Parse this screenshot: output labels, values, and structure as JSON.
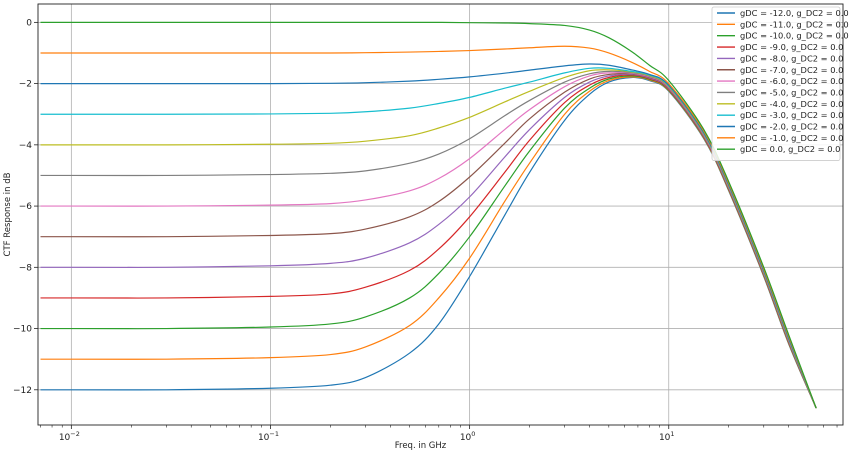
{
  "chart_data": {
    "type": "line",
    "title": "",
    "xlabel": "Freq. in GHz",
    "ylabel": "CTF Response in dB",
    "x_scale": "log",
    "xlim": [
      0.0068,
      75
    ],
    "ylim": [
      -13.15,
      0.6
    ],
    "grid": true,
    "legend_position": "top-right",
    "x_ticks": [
      {
        "value": 0.01,
        "base": "10",
        "exp": "−2"
      },
      {
        "value": 0.1,
        "base": "10",
        "exp": "−1"
      },
      {
        "value": 1,
        "base": "10",
        "exp": "0"
      },
      {
        "value": 10,
        "base": "10",
        "exp": "1"
      }
    ],
    "y_ticks": [
      {
        "value": 0,
        "label": "0"
      },
      {
        "value": -2,
        "label": "−2"
      },
      {
        "value": -4,
        "label": "−4"
      },
      {
        "value": -6,
        "label": "−6"
      },
      {
        "value": -8,
        "label": "−8"
      },
      {
        "value": -10,
        "label": "−10"
      },
      {
        "value": -12,
        "label": "−12"
      }
    ],
    "x": [
      0.007,
      0.01,
      0.03,
      0.1,
      0.2,
      0.3,
      0.5,
      0.7,
      1.0,
      1.5,
      2.0,
      3.0,
      4.0,
      5.0,
      6.5,
      8.0,
      10.0,
      15.0,
      20.0,
      30.0,
      40.0,
      55.0
    ],
    "series": [
      {
        "name": "gDC = -12.0, g_DC2 = 0.0",
        "color": "#1f77b4",
        "values": [
          -12.0,
          -12.0,
          -12.0,
          -11.95,
          -11.85,
          -11.6,
          -10.8,
          -9.85,
          -8.3,
          -6.3,
          -4.9,
          -3.2,
          -2.35,
          -1.95,
          -1.8,
          -1.9,
          -2.25,
          -3.8,
          -5.5,
          -8.3,
          -10.5,
          -12.6
        ]
      },
      {
        "name": "gDC = -11.0, g_DC2 = 0.0",
        "color": "#ff7f0e",
        "values": [
          -11.0,
          -11.0,
          -11.0,
          -10.95,
          -10.85,
          -10.6,
          -9.9,
          -9.0,
          -7.7,
          -5.85,
          -4.6,
          -3.0,
          -2.25,
          -1.9,
          -1.78,
          -1.88,
          -2.23,
          -3.78,
          -5.48,
          -8.28,
          -10.48,
          -12.6
        ]
      },
      {
        "name": "gDC = -10.0, g_DC2 = 0.0",
        "color": "#2ca02c",
        "values": [
          -10.0,
          -10.0,
          -10.0,
          -9.95,
          -9.85,
          -9.62,
          -9.0,
          -8.2,
          -7.0,
          -5.35,
          -4.2,
          -2.8,
          -2.15,
          -1.85,
          -1.75,
          -1.86,
          -2.21,
          -3.76,
          -5.46,
          -8.26,
          -10.46,
          -12.6
        ]
      },
      {
        "name": "gDC = -9.0, g_DC2 = 0.0",
        "color": "#d62728",
        "values": [
          -9.0,
          -9.0,
          -9.0,
          -8.95,
          -8.87,
          -8.65,
          -8.1,
          -7.4,
          -6.35,
          -4.9,
          -3.85,
          -2.62,
          -2.05,
          -1.8,
          -1.72,
          -1.84,
          -2.19,
          -3.74,
          -5.44,
          -8.24,
          -10.44,
          -12.6
        ]
      },
      {
        "name": "gDC = -8.0, g_DC2 = 0.0",
        "color": "#9467bd",
        "values": [
          -8.0,
          -8.0,
          -8.0,
          -7.95,
          -7.87,
          -7.7,
          -7.2,
          -6.6,
          -5.7,
          -4.4,
          -3.5,
          -2.45,
          -1.95,
          -1.75,
          -1.7,
          -1.82,
          -2.17,
          -3.72,
          -5.42,
          -8.22,
          -10.42,
          -12.6
        ]
      },
      {
        "name": "gDC = -7.0, g_DC2 = 0.0",
        "color": "#8c564b",
        "values": [
          -7.0,
          -7.0,
          -7.0,
          -6.96,
          -6.9,
          -6.75,
          -6.35,
          -5.85,
          -5.05,
          -3.95,
          -3.15,
          -2.28,
          -1.85,
          -1.7,
          -1.68,
          -1.8,
          -2.15,
          -3.7,
          -5.4,
          -8.2,
          -10.4,
          -12.6
        ]
      },
      {
        "name": "gDC = -6.0, g_DC2 = 0.0",
        "color": "#e377c2",
        "values": [
          -6.0,
          -6.0,
          -6.0,
          -5.97,
          -5.92,
          -5.8,
          -5.5,
          -5.1,
          -4.45,
          -3.5,
          -2.85,
          -2.1,
          -1.75,
          -1.65,
          -1.66,
          -1.78,
          -2.13,
          -3.68,
          -5.38,
          -8.18,
          -10.38,
          -12.6
        ]
      },
      {
        "name": "gDC = -5.0, g_DC2 = 0.0",
        "color": "#7f7f7f",
        "values": [
          -5.0,
          -5.0,
          -5.0,
          -4.97,
          -4.93,
          -4.85,
          -4.6,
          -4.3,
          -3.8,
          -3.05,
          -2.55,
          -1.95,
          -1.68,
          -1.6,
          -1.64,
          -1.76,
          -2.11,
          -3.66,
          -5.36,
          -8.16,
          -10.36,
          -12.6
        ]
      },
      {
        "name": "gDC = -4.0, g_DC2 = 0.0",
        "color": "#bcbd22",
        "values": [
          -4.0,
          -4.0,
          -4.0,
          -3.98,
          -3.95,
          -3.88,
          -3.7,
          -3.45,
          -3.1,
          -2.6,
          -2.25,
          -1.8,
          -1.58,
          -1.55,
          -1.62,
          -1.74,
          -2.09,
          -3.64,
          -5.34,
          -8.14,
          -10.34,
          -12.6
        ]
      },
      {
        "name": "gDC = -3.0, g_DC2 = 0.0",
        "color": "#17becf",
        "values": [
          -3.0,
          -3.0,
          -3.0,
          -2.99,
          -2.97,
          -2.92,
          -2.8,
          -2.65,
          -2.45,
          -2.15,
          -1.95,
          -1.65,
          -1.5,
          -1.5,
          -1.6,
          -1.72,
          -2.07,
          -3.62,
          -5.32,
          -8.12,
          -10.32,
          -12.6
        ]
      },
      {
        "name": "gDC = -2.0, g_DC2 = 0.0",
        "color": "#1f77b4",
        "values": [
          -2.0,
          -2.0,
          -2.0,
          -2.0,
          -1.99,
          -1.97,
          -1.92,
          -1.86,
          -1.78,
          -1.66,
          -1.56,
          -1.42,
          -1.36,
          -1.4,
          -1.55,
          -1.7,
          -2.05,
          -3.6,
          -5.3,
          -8.1,
          -10.3,
          -12.6
        ]
      },
      {
        "name": "gDC = -1.0, g_DC2 = 0.0",
        "color": "#ff7f0e",
        "values": [
          -1.0,
          -1.0,
          -1.0,
          -1.0,
          -1.0,
          -0.99,
          -0.97,
          -0.95,
          -0.92,
          -0.87,
          -0.83,
          -0.78,
          -0.84,
          -1.0,
          -1.3,
          -1.6,
          -2.0,
          -3.55,
          -5.25,
          -8.05,
          -10.25,
          -12.6
        ]
      },
      {
        "name": "gDC = 0.0, g_DC2 = 0.0",
        "color": "#2ca02c",
        "values": [
          0.0,
          0.0,
          0.0,
          0.0,
          0.0,
          0.0,
          0.0,
          0.0,
          -0.01,
          -0.02,
          -0.04,
          -0.1,
          -0.25,
          -0.5,
          -0.95,
          -1.4,
          -1.9,
          -3.5,
          -5.2,
          -8.0,
          -10.2,
          -12.6
        ]
      }
    ]
  }
}
